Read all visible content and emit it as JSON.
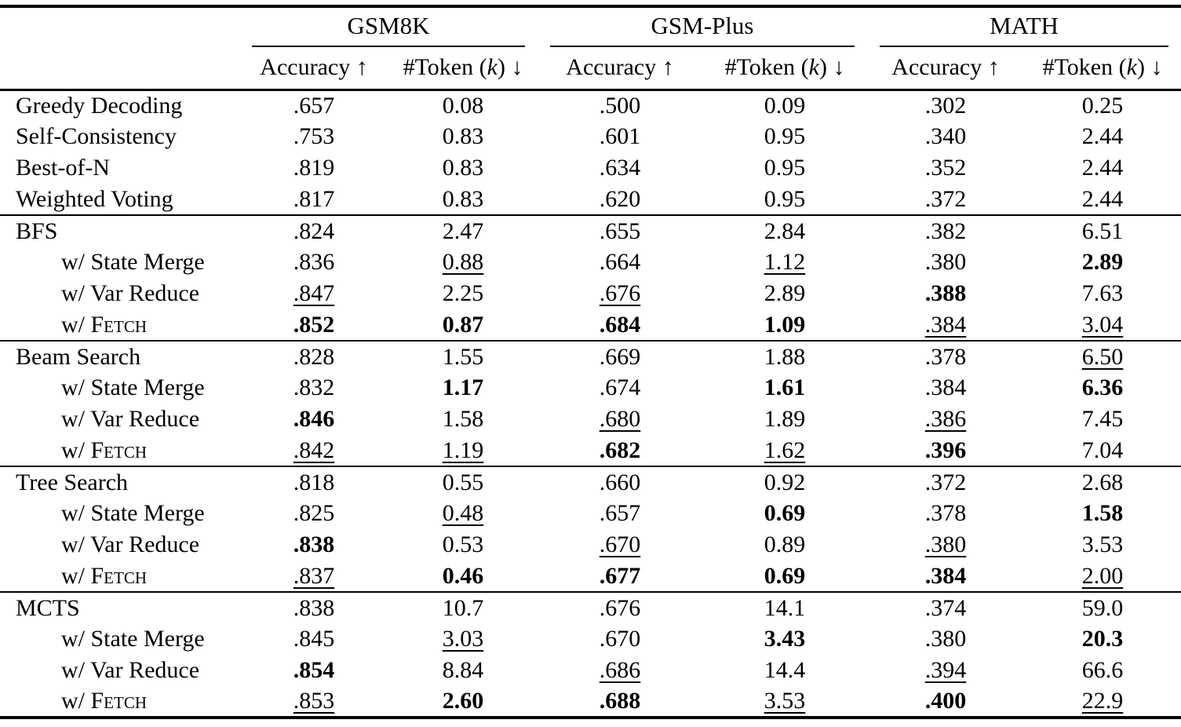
{
  "colors": {
    "text": "#000000",
    "background": "#ffffff",
    "rule": "#000000"
  },
  "table": {
    "groups": [
      {
        "name": "GSM8K"
      },
      {
        "name": "GSM-Plus"
      },
      {
        "name": "MATH"
      }
    ],
    "subheader": {
      "accuracy": "Accuracy",
      "up_arrow": "↑",
      "token_pre": "#Token (",
      "token_k": "k",
      "token_post": ")",
      "down_arrow": "↓"
    },
    "sections": [
      {
        "rows": [
          {
            "method": "Greedy Decoding",
            "indent": false,
            "sc": null,
            "cells": [
              {
                "v": ".657",
                "s": "n"
              },
              {
                "v": "0.08",
                "s": "n"
              },
              {
                "v": ".500",
                "s": "n"
              },
              {
                "v": "0.09",
                "s": "n"
              },
              {
                "v": ".302",
                "s": "n"
              },
              {
                "v": "0.25",
                "s": "n"
              }
            ]
          },
          {
            "method": "Self-Consistency",
            "indent": false,
            "sc": null,
            "cells": [
              {
                "v": ".753",
                "s": "n"
              },
              {
                "v": "0.83",
                "s": "n"
              },
              {
                "v": ".601",
                "s": "n"
              },
              {
                "v": "0.95",
                "s": "n"
              },
              {
                "v": ".340",
                "s": "n"
              },
              {
                "v": "2.44",
                "s": "n"
              }
            ]
          },
          {
            "method": "Best-of-N",
            "indent": false,
            "sc": null,
            "cells": [
              {
                "v": ".819",
                "s": "n"
              },
              {
                "v": "0.83",
                "s": "n"
              },
              {
                "v": ".634",
                "s": "n"
              },
              {
                "v": "0.95",
                "s": "n"
              },
              {
                "v": ".352",
                "s": "n"
              },
              {
                "v": "2.44",
                "s": "n"
              }
            ]
          },
          {
            "method": "Weighted Voting",
            "indent": false,
            "sc": null,
            "cells": [
              {
                "v": ".817",
                "s": "n"
              },
              {
                "v": "0.83",
                "s": "n"
              },
              {
                "v": ".620",
                "s": "n"
              },
              {
                "v": "0.95",
                "s": "n"
              },
              {
                "v": ".372",
                "s": "n"
              },
              {
                "v": "2.44",
                "s": "n"
              }
            ]
          }
        ]
      },
      {
        "rows": [
          {
            "method": "BFS",
            "indent": false,
            "sc": null,
            "cells": [
              {
                "v": ".824",
                "s": "n"
              },
              {
                "v": "2.47",
                "s": "n"
              },
              {
                "v": ".655",
                "s": "n"
              },
              {
                "v": "2.84",
                "s": "n"
              },
              {
                "v": ".382",
                "s": "n"
              },
              {
                "v": "6.51",
                "s": "n"
              }
            ]
          },
          {
            "method": "w/ State Merge",
            "indent": true,
            "sc": null,
            "cells": [
              {
                "v": ".836",
                "s": "n"
              },
              {
                "v": "0.88",
                "s": "u"
              },
              {
                "v": ".664",
                "s": "n"
              },
              {
                "v": "1.12",
                "s": "u"
              },
              {
                "v": ".380",
                "s": "n"
              },
              {
                "v": "2.89",
                "s": "b"
              }
            ]
          },
          {
            "method": "w/ Var Reduce",
            "indent": true,
            "sc": null,
            "cells": [
              {
                "v": ".847",
                "s": "u"
              },
              {
                "v": "2.25",
                "s": "n"
              },
              {
                "v": ".676",
                "s": "u"
              },
              {
                "v": "2.89",
                "s": "n"
              },
              {
                "v": ".388",
                "s": "b"
              },
              {
                "v": "7.63",
                "s": "n"
              }
            ]
          },
          {
            "method": "w/",
            "indent": true,
            "sc": "Fetch",
            "cells": [
              {
                "v": ".852",
                "s": "b"
              },
              {
                "v": "0.87",
                "s": "b"
              },
              {
                "v": ".684",
                "s": "b"
              },
              {
                "v": "1.09",
                "s": "b"
              },
              {
                "v": ".384",
                "s": "u"
              },
              {
                "v": "3.04",
                "s": "u"
              }
            ]
          }
        ]
      },
      {
        "rows": [
          {
            "method": "Beam Search",
            "indent": false,
            "sc": null,
            "cells": [
              {
                "v": ".828",
                "s": "n"
              },
              {
                "v": "1.55",
                "s": "n"
              },
              {
                "v": ".669",
                "s": "n"
              },
              {
                "v": "1.88",
                "s": "n"
              },
              {
                "v": ".378",
                "s": "n"
              },
              {
                "v": "6.50",
                "s": "u"
              }
            ]
          },
          {
            "method": "w/ State Merge",
            "indent": true,
            "sc": null,
            "cells": [
              {
                "v": ".832",
                "s": "n"
              },
              {
                "v": "1.17",
                "s": "b"
              },
              {
                "v": ".674",
                "s": "n"
              },
              {
                "v": "1.61",
                "s": "b"
              },
              {
                "v": ".384",
                "s": "n"
              },
              {
                "v": "6.36",
                "s": "b"
              }
            ]
          },
          {
            "method": "w/ Var Reduce",
            "indent": true,
            "sc": null,
            "cells": [
              {
                "v": ".846",
                "s": "b"
              },
              {
                "v": "1.58",
                "s": "n"
              },
              {
                "v": ".680",
                "s": "u"
              },
              {
                "v": "1.89",
                "s": "n"
              },
              {
                "v": ".386",
                "s": "u"
              },
              {
                "v": "7.45",
                "s": "n"
              }
            ]
          },
          {
            "method": "w/",
            "indent": true,
            "sc": "Fetch",
            "cells": [
              {
                "v": ".842",
                "s": "u"
              },
              {
                "v": "1.19",
                "s": "u"
              },
              {
                "v": ".682",
                "s": "b"
              },
              {
                "v": "1.62",
                "s": "u"
              },
              {
                "v": ".396",
                "s": "b"
              },
              {
                "v": "7.04",
                "s": "n"
              }
            ]
          }
        ]
      },
      {
        "rows": [
          {
            "method": "Tree Search",
            "indent": false,
            "sc": null,
            "cells": [
              {
                "v": ".818",
                "s": "n"
              },
              {
                "v": "0.55",
                "s": "n"
              },
              {
                "v": ".660",
                "s": "n"
              },
              {
                "v": "0.92",
                "s": "n"
              },
              {
                "v": ".372",
                "s": "n"
              },
              {
                "v": "2.68",
                "s": "n"
              }
            ]
          },
          {
            "method": "w/ State Merge",
            "indent": true,
            "sc": null,
            "cells": [
              {
                "v": ".825",
                "s": "n"
              },
              {
                "v": "0.48",
                "s": "u"
              },
              {
                "v": ".657",
                "s": "n"
              },
              {
                "v": "0.69",
                "s": "b"
              },
              {
                "v": ".378",
                "s": "n"
              },
              {
                "v": "1.58",
                "s": "b"
              }
            ]
          },
          {
            "method": "w/ Var Reduce",
            "indent": true,
            "sc": null,
            "cells": [
              {
                "v": ".838",
                "s": "b"
              },
              {
                "v": "0.53",
                "s": "n"
              },
              {
                "v": ".670",
                "s": "u"
              },
              {
                "v": "0.89",
                "s": "n"
              },
              {
                "v": ".380",
                "s": "u"
              },
              {
                "v": "3.53",
                "s": "n"
              }
            ]
          },
          {
            "method": "w/",
            "indent": true,
            "sc": "Fetch",
            "cells": [
              {
                "v": ".837",
                "s": "u"
              },
              {
                "v": "0.46",
                "s": "b"
              },
              {
                "v": ".677",
                "s": "b"
              },
              {
                "v": "0.69",
                "s": "b"
              },
              {
                "v": ".384",
                "s": "b"
              },
              {
                "v": "2.00",
                "s": "u"
              }
            ]
          }
        ]
      },
      {
        "rows": [
          {
            "method": "MCTS",
            "indent": false,
            "sc": null,
            "cells": [
              {
                "v": ".838",
                "s": "n"
              },
              {
                "v": "10.7",
                "s": "n"
              },
              {
                "v": ".676",
                "s": "n"
              },
              {
                "v": "14.1",
                "s": "n"
              },
              {
                "v": ".374",
                "s": "n"
              },
              {
                "v": "59.0",
                "s": "n"
              }
            ]
          },
          {
            "method": "w/ State Merge",
            "indent": true,
            "sc": null,
            "cells": [
              {
                "v": ".845",
                "s": "n"
              },
              {
                "v": "3.03",
                "s": "u"
              },
              {
                "v": ".670",
                "s": "n"
              },
              {
                "v": "3.43",
                "s": "b"
              },
              {
                "v": ".380",
                "s": "n"
              },
              {
                "v": "20.3",
                "s": "b"
              }
            ]
          },
          {
            "method": "w/ Var Reduce",
            "indent": true,
            "sc": null,
            "cells": [
              {
                "v": ".854",
                "s": "b"
              },
              {
                "v": "8.84",
                "s": "n"
              },
              {
                "v": ".686",
                "s": "u"
              },
              {
                "v": "14.4",
                "s": "n"
              },
              {
                "v": ".394",
                "s": "u"
              },
              {
                "v": "66.6",
                "s": "n"
              }
            ]
          },
          {
            "method": "w/",
            "indent": true,
            "sc": "Fetch",
            "cells": [
              {
                "v": ".853",
                "s": "u"
              },
              {
                "v": "2.60",
                "s": "b"
              },
              {
                "v": ".688",
                "s": "b"
              },
              {
                "v": "3.53",
                "s": "u"
              },
              {
                "v": ".400",
                "s": "b"
              },
              {
                "v": "22.9",
                "s": "u"
              }
            ]
          }
        ]
      }
    ]
  }
}
